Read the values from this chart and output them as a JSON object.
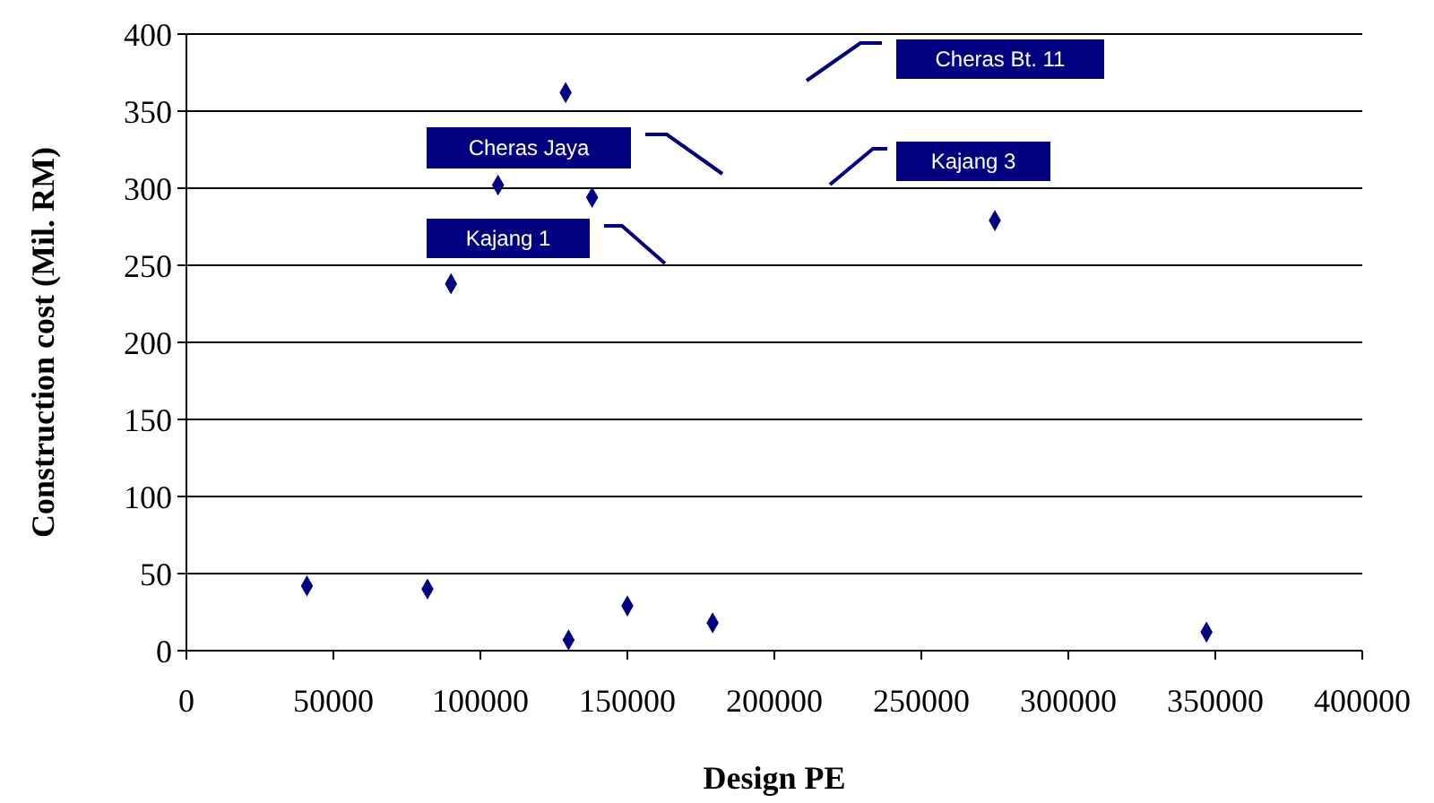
{
  "chart_data": {
    "type": "scatter",
    "xlabel": "Design PE",
    "ylabel": "Construction  cost (Mil. RM)",
    "x": [
      41000,
      82000,
      90000,
      106000,
      129000,
      138000,
      130000,
      150000,
      179000,
      275000,
      347000
    ],
    "values": [
      42,
      40,
      238,
      302,
      362,
      294,
      7,
      29,
      18,
      279,
      12
    ],
    "color": "#000080",
    "marker": "diamond",
    "grid": "y",
    "xlim": [
      0,
      400000
    ],
    "xticks": [
      0,
      50000,
      100000,
      150000,
      200000,
      250000,
      300000,
      350000,
      400000
    ],
    "ylim": [
      0,
      400
    ],
    "yticks": [
      0,
      50,
      100,
      150,
      200,
      250,
      300,
      350,
      400
    ],
    "annotations": [
      "Cheras Bt. 11",
      "Cheras Jaya",
      "Kajang 3",
      "Kajang 1"
    ]
  }
}
